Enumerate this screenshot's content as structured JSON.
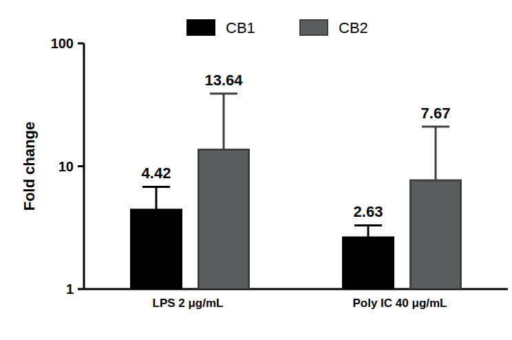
{
  "chart_data": {
    "type": "bar",
    "categories": [
      "LPS 2 μg/mL",
      "Poly IC 40 μg/mL"
    ],
    "series": [
      {
        "name": "CB1",
        "color": "#000000",
        "values": [
          4.42,
          2.63
        ],
        "errors": [
          2.38,
          0.67
        ]
      },
      {
        "name": "CB2",
        "color": "#5b5e5e",
        "values": [
          13.64,
          7.67
        ],
        "errors": [
          25.4,
          13.3
        ]
      }
    ],
    "y_label": "Fold change",
    "ylim": [
      1,
      100
    ],
    "yticks": [
      1,
      10,
      100
    ],
    "log": "y",
    "data_labels": true,
    "legend": "top"
  }
}
